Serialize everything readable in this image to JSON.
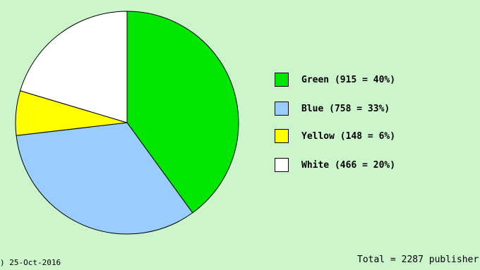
{
  "chart_data": {
    "type": "pie",
    "slices": [
      {
        "label": "Green",
        "value": 915,
        "percent": 40,
        "color": "#00e600",
        "legend": "Green (915 = 40%)"
      },
      {
        "label": "Blue",
        "value": 758,
        "percent": 33,
        "color": "#99ccff",
        "legend": "Blue (758 = 33%)"
      },
      {
        "label": "Yellow",
        "value": 148,
        "percent": 6,
        "color": "#ffff00",
        "legend": "Yellow (148 = 6%)"
      },
      {
        "label": "White",
        "value": 466,
        "percent": 20,
        "color": "#ffffff",
        "legend": "White (466 = 20%)"
      }
    ],
    "total": 2287,
    "legend_position": "right"
  },
  "footer": {
    "date": ") 25-Oct-2016",
    "total": "Total = 2287 publisher"
  },
  "colors": {
    "background": "#ccf5cc",
    "outline": "#000000"
  }
}
